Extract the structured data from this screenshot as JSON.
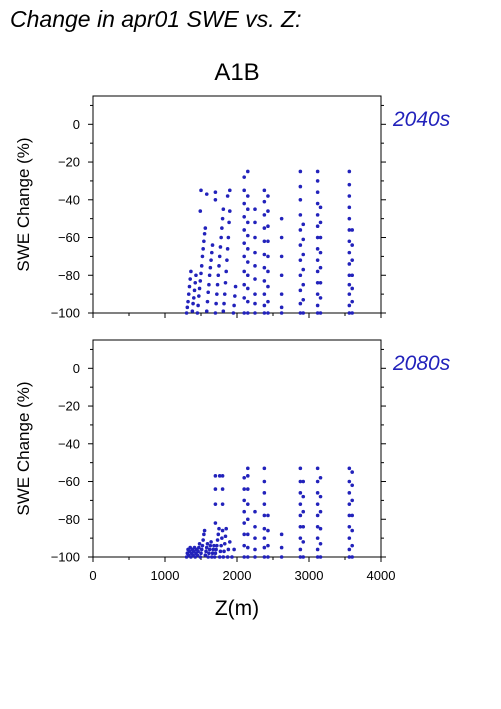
{
  "figure": {
    "title": "Change in apr01 SWE vs. Z:",
    "scenario": "A1B",
    "xlabel": "Z(m)",
    "point_color": "#2222bb"
  },
  "chart_data": [
    {
      "type": "scatter",
      "period": "2040s",
      "xlabel": "",
      "ylabel": "SWE Change (%)",
      "xlim": [
        0,
        4000
      ],
      "ylim": [
        -100,
        15
      ],
      "x_ticks": [
        "0",
        "1000",
        "2000",
        "3000",
        "4000"
      ],
      "y_ticks": [
        "0",
        "−20",
        "−40",
        "−60",
        "−80",
        "−100"
      ],
      "x_tick_values": [
        0,
        1000,
        2000,
        3000,
        4000
      ],
      "y_tick_values": [
        0,
        -20,
        -40,
        -60,
        -80,
        -100
      ],
      "points": [
        [
          1300,
          -100
        ],
        [
          1310,
          -97
        ],
        [
          1320,
          -94
        ],
        [
          1330,
          -90
        ],
        [
          1340,
          -86
        ],
        [
          1350,
          -82
        ],
        [
          1360,
          -78
        ],
        [
          1380,
          -99
        ],
        [
          1390,
          -95
        ],
        [
          1400,
          -92
        ],
        [
          1410,
          -88
        ],
        [
          1420,
          -84
        ],
        [
          1430,
          -80
        ],
        [
          1450,
          -100
        ],
        [
          1460,
          -96
        ],
        [
          1470,
          -91
        ],
        [
          1480,
          -87
        ],
        [
          1490,
          -83
        ],
        [
          1500,
          -79
        ],
        [
          1510,
          -75
        ],
        [
          1520,
          -70
        ],
        [
          1530,
          -66
        ],
        [
          1540,
          -62
        ],
        [
          1550,
          -58
        ],
        [
          1560,
          -55
        ],
        [
          1490,
          -46
        ],
        [
          1500,
          -35
        ],
        [
          1580,
          -37
        ],
        [
          1580,
          -99
        ],
        [
          1590,
          -94
        ],
        [
          1600,
          -89
        ],
        [
          1610,
          -85
        ],
        [
          1620,
          -80
        ],
        [
          1630,
          -76
        ],
        [
          1640,
          -72
        ],
        [
          1650,
          -68
        ],
        [
          1660,
          -64
        ],
        [
          1700,
          -100
        ],
        [
          1710,
          -95
        ],
        [
          1720,
          -90
        ],
        [
          1730,
          -85
        ],
        [
          1740,
          -80
        ],
        [
          1750,
          -75
        ],
        [
          1760,
          -70
        ],
        [
          1770,
          -65
        ],
        [
          1780,
          -60
        ],
        [
          1790,
          -55
        ],
        [
          1800,
          -50
        ],
        [
          1810,
          -45
        ],
        [
          1700,
          -40
        ],
        [
          1700,
          -36
        ],
        [
          1810,
          -99
        ],
        [
          1820,
          -95
        ],
        [
          1830,
          -90
        ],
        [
          1840,
          -84
        ],
        [
          1850,
          -78
        ],
        [
          1860,
          -72
        ],
        [
          1870,
          -66
        ],
        [
          1880,
          -60
        ],
        [
          1890,
          -52
        ],
        [
          1900,
          -46
        ],
        [
          1870,
          -38
        ],
        [
          1900,
          -35
        ],
        [
          1950,
          -100
        ],
        [
          1960,
          -96
        ],
        [
          1970,
          -91
        ],
        [
          1980,
          -86
        ],
        [
          2100,
          -100
        ],
        [
          2100,
          -92
        ],
        [
          2100,
          -85
        ],
        [
          2100,
          -78
        ],
        [
          2100,
          -70
        ],
        [
          2100,
          -63
        ],
        [
          2100,
          -56
        ],
        [
          2100,
          -49
        ],
        [
          2100,
          -42
        ],
        [
          2100,
          -35
        ],
        [
          2100,
          -28
        ],
        [
          2150,
          -100
        ],
        [
          2150,
          -94
        ],
        [
          2150,
          -87
        ],
        [
          2150,
          -80
        ],
        [
          2150,
          -73
        ],
        [
          2150,
          -66
        ],
        [
          2150,
          -59
        ],
        [
          2150,
          -52
        ],
        [
          2150,
          -45
        ],
        [
          2150,
          -38
        ],
        [
          2150,
          -25
        ],
        [
          2250,
          -100
        ],
        [
          2250,
          -95
        ],
        [
          2250,
          -90
        ],
        [
          2250,
          -82
        ],
        [
          2250,
          -75
        ],
        [
          2250,
          -68
        ],
        [
          2250,
          -60
        ],
        [
          2250,
          -52
        ],
        [
          2250,
          -45
        ],
        [
          2380,
          -100
        ],
        [
          2380,
          -96
        ],
        [
          2380,
          -90
        ],
        [
          2380,
          -83
        ],
        [
          2380,
          -76
        ],
        [
          2380,
          -69
        ],
        [
          2380,
          -62
        ],
        [
          2380,
          -55
        ],
        [
          2380,
          -48
        ],
        [
          2380,
          -41
        ],
        [
          2380,
          -35
        ],
        [
          2430,
          -100
        ],
        [
          2430,
          -94
        ],
        [
          2430,
          -86
        ],
        [
          2430,
          -78
        ],
        [
          2430,
          -70
        ],
        [
          2430,
          -62
        ],
        [
          2430,
          -54
        ],
        [
          2430,
          -46
        ],
        [
          2430,
          -38
        ],
        [
          2620,
          -100
        ],
        [
          2620,
          -97
        ],
        [
          2620,
          -90
        ],
        [
          2620,
          -80
        ],
        [
          2620,
          -70
        ],
        [
          2620,
          -60
        ],
        [
          2620,
          -50
        ],
        [
          2880,
          -100
        ],
        [
          2880,
          -95
        ],
        [
          2880,
          -88
        ],
        [
          2880,
          -80
        ],
        [
          2880,
          -72
        ],
        [
          2880,
          -64
        ],
        [
          2880,
          -56
        ],
        [
          2880,
          -48
        ],
        [
          2880,
          -40
        ],
        [
          2880,
          -33
        ],
        [
          2880,
          -25
        ],
        [
          2920,
          -100
        ],
        [
          2920,
          -93
        ],
        [
          2920,
          -85
        ],
        [
          2920,
          -77
        ],
        [
          2920,
          -69
        ],
        [
          2920,
          -61
        ],
        [
          2920,
          -53
        ],
        [
          3120,
          -100
        ],
        [
          3120,
          -96
        ],
        [
          3120,
          -90
        ],
        [
          3120,
          -84
        ],
        [
          3120,
          -78
        ],
        [
          3120,
          -72
        ],
        [
          3120,
          -66
        ],
        [
          3120,
          -60
        ],
        [
          3120,
          -54
        ],
        [
          3120,
          -48
        ],
        [
          3120,
          -42
        ],
        [
          3120,
          -36
        ],
        [
          3120,
          -30
        ],
        [
          3120,
          -25
        ],
        [
          3160,
          -100
        ],
        [
          3160,
          -92
        ],
        [
          3160,
          -84
        ],
        [
          3160,
          -76
        ],
        [
          3160,
          -68
        ],
        [
          3160,
          -60
        ],
        [
          3160,
          -52
        ],
        [
          3160,
          -44
        ],
        [
          3560,
          -100
        ],
        [
          3560,
          -96
        ],
        [
          3560,
          -90
        ],
        [
          3560,
          -85
        ],
        [
          3560,
          -80
        ],
        [
          3560,
          -74
        ],
        [
          3560,
          -68
        ],
        [
          3560,
          -62
        ],
        [
          3560,
          -56
        ],
        [
          3560,
          -50
        ],
        [
          3560,
          -44
        ],
        [
          3560,
          -38
        ],
        [
          3560,
          -32
        ],
        [
          3560,
          -25
        ],
        [
          3600,
          -100
        ],
        [
          3600,
          -94
        ],
        [
          3600,
          -87
        ],
        [
          3600,
          -80
        ],
        [
          3600,
          -72
        ],
        [
          3600,
          -64
        ],
        [
          3600,
          -56
        ]
      ]
    },
    {
      "type": "scatter",
      "period": "2080s",
      "xlabel": "Z(m)",
      "ylabel": "SWE Change (%)",
      "xlim": [
        0,
        4000
      ],
      "ylim": [
        -100,
        15
      ],
      "x_ticks": [
        "0",
        "1000",
        "2000",
        "3000",
        "4000"
      ],
      "y_ticks": [
        "0",
        "−20",
        "−40",
        "−60",
        "−80",
        "−100"
      ],
      "x_tick_values": [
        0,
        1000,
        2000,
        3000,
        4000
      ],
      "y_tick_values": [
        0,
        -20,
        -40,
        -60,
        -80,
        -100
      ],
      "points": [
        [
          1300,
          -100
        ],
        [
          1310,
          -98
        ],
        [
          1320,
          -96
        ],
        [
          1330,
          -99
        ],
        [
          1340,
          -97
        ],
        [
          1350,
          -95
        ],
        [
          1360,
          -100
        ],
        [
          1370,
          -98
        ],
        [
          1380,
          -96
        ],
        [
          1390,
          -99
        ],
        [
          1400,
          -97
        ],
        [
          1410,
          -95
        ],
        [
          1420,
          -100
        ],
        [
          1430,
          -98
        ],
        [
          1440,
          -96
        ],
        [
          1450,
          -99
        ],
        [
          1460,
          -97
        ],
        [
          1470,
          -95
        ],
        [
          1480,
          -93
        ],
        [
          1490,
          -100
        ],
        [
          1500,
          -98
        ],
        [
          1510,
          -96
        ],
        [
          1520,
          -94
        ],
        [
          1530,
          -91
        ],
        [
          1540,
          -88
        ],
        [
          1550,
          -86
        ],
        [
          1560,
          -99
        ],
        [
          1570,
          -97
        ],
        [
          1580,
          -95
        ],
        [
          1590,
          -93
        ],
        [
          1600,
          -100
        ],
        [
          1610,
          -98
        ],
        [
          1620,
          -96
        ],
        [
          1630,
          -94
        ],
        [
          1640,
          -92
        ],
        [
          1650,
          -100
        ],
        [
          1660,
          -98
        ],
        [
          1670,
          -96
        ],
        [
          1680,
          -94
        ],
        [
          1690,
          -100
        ],
        [
          1700,
          -98
        ],
        [
          1710,
          -96
        ],
        [
          1720,
          -94
        ],
        [
          1730,
          -91
        ],
        [
          1740,
          -88
        ],
        [
          1750,
          -85
        ],
        [
          1760,
          -100
        ],
        [
          1770,
          -97
        ],
        [
          1780,
          -94
        ],
        [
          1790,
          -90
        ],
        [
          1800,
          -86
        ],
        [
          1810,
          -100
        ],
        [
          1820,
          -97
        ],
        [
          1830,
          -93
        ],
        [
          1840,
          -89
        ],
        [
          1850,
          -85
        ],
        [
          1870,
          -100
        ],
        [
          1880,
          -96
        ],
        [
          1900,
          -92
        ],
        [
          1930,
          -100
        ],
        [
          1960,
          -96
        ],
        [
          1700,
          -82
        ],
        [
          1700,
          -72
        ],
        [
          1700,
          -64
        ],
        [
          1700,
          -57
        ],
        [
          1760,
          -57
        ],
        [
          1800,
          -72
        ],
        [
          1800,
          -64
        ],
        [
          1800,
          -57
        ],
        [
          2100,
          -100
        ],
        [
          2100,
          -94
        ],
        [
          2100,
          -88
        ],
        [
          2100,
          -82
        ],
        [
          2100,
          -76
        ],
        [
          2100,
          -70
        ],
        [
          2100,
          -64
        ],
        [
          2100,
          -58
        ],
        [
          2150,
          -100
        ],
        [
          2150,
          -95
        ],
        [
          2150,
          -88
        ],
        [
          2150,
          -80
        ],
        [
          2150,
          -72
        ],
        [
          2150,
          -64
        ],
        [
          2150,
          -57
        ],
        [
          2150,
          -53
        ],
        [
          2250,
          -100
        ],
        [
          2250,
          -96
        ],
        [
          2250,
          -90
        ],
        [
          2250,
          -84
        ],
        [
          2250,
          -76
        ],
        [
          2380,
          -100
        ],
        [
          2380,
          -95
        ],
        [
          2380,
          -90
        ],
        [
          2380,
          -85
        ],
        [
          2380,
          -78
        ],
        [
          2380,
          -72
        ],
        [
          2380,
          -66
        ],
        [
          2380,
          -60
        ],
        [
          2380,
          -53
        ],
        [
          2430,
          -100
        ],
        [
          2430,
          -94
        ],
        [
          2430,
          -86
        ],
        [
          2430,
          -78
        ],
        [
          2620,
          -100
        ],
        [
          2620,
          -95
        ],
        [
          2620,
          -88
        ],
        [
          2880,
          -100
        ],
        [
          2880,
          -96
        ],
        [
          2880,
          -90
        ],
        [
          2880,
          -84
        ],
        [
          2880,
          -78
        ],
        [
          2880,
          -72
        ],
        [
          2880,
          -66
        ],
        [
          2880,
          -60
        ],
        [
          2880,
          -53
        ],
        [
          2920,
          -100
        ],
        [
          2920,
          -92
        ],
        [
          2920,
          -84
        ],
        [
          2920,
          -76
        ],
        [
          2920,
          -68
        ],
        [
          2920,
          -60
        ],
        [
          3120,
          -100
        ],
        [
          3120,
          -96
        ],
        [
          3120,
          -90
        ],
        [
          3120,
          -84
        ],
        [
          3120,
          -78
        ],
        [
          3120,
          -72
        ],
        [
          3120,
          -66
        ],
        [
          3120,
          -60
        ],
        [
          3120,
          -53
        ],
        [
          3160,
          -100
        ],
        [
          3160,
          -93
        ],
        [
          3160,
          -85
        ],
        [
          3160,
          -76
        ],
        [
          3160,
          -68
        ],
        [
          3160,
          -58
        ],
        [
          3560,
          -100
        ],
        [
          3560,
          -96
        ],
        [
          3560,
          -90
        ],
        [
          3560,
          -84
        ],
        [
          3560,
          -78
        ],
        [
          3560,
          -72
        ],
        [
          3560,
          -66
        ],
        [
          3560,
          -60
        ],
        [
          3560,
          -53
        ],
        [
          3600,
          -100
        ],
        [
          3600,
          -94
        ],
        [
          3600,
          -86
        ],
        [
          3600,
          -78
        ],
        [
          3600,
          -70
        ],
        [
          3600,
          -62
        ],
        [
          3600,
          -55
        ]
      ]
    }
  ]
}
